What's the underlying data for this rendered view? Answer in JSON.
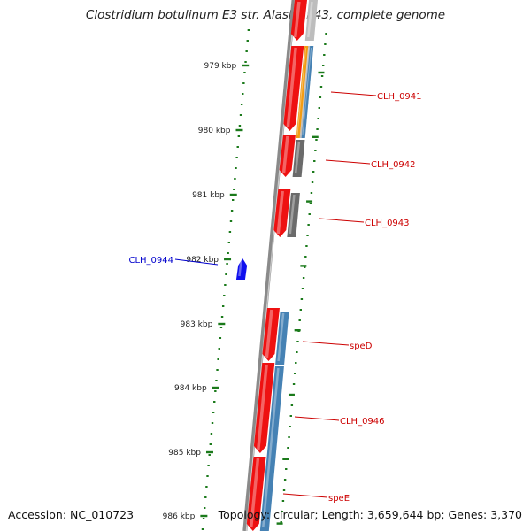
{
  "title": "Clostridium botulinum E3 str. Alaska E43, complete genome",
  "accession": "Accession: NC_010723",
  "topology": "Topology: circular; Length: 3,659,644 bp; Genes: 3,370",
  "colors": {
    "forward_gene": "#ee1111",
    "reverse_gene": "#1010ee",
    "blue_feature": "#4682b4",
    "gray_feature": "#6b6b6b",
    "orange_feature": "#f39c12",
    "tick_major": "#1b7a1b",
    "tick_minor": "#1b7a1b",
    "backbone": "#8a8a8a",
    "label_red": "#cc0000",
    "label_blue": "#0000cc"
  },
  "ruler_labels": [
    "979 kbp",
    "980 kbp",
    "981 kbp",
    "982 kbp",
    "983 kbp",
    "984 kbp",
    "985 kbp",
    "986 kbp"
  ],
  "gene_labels": [
    {
      "text": "CLH_0941",
      "color": "red"
    },
    {
      "text": "CLH_0942",
      "color": "red"
    },
    {
      "text": "CLH_0943",
      "color": "red"
    },
    {
      "text": "CLH_0944",
      "color": "blue"
    },
    {
      "text": "speD",
      "color": "red"
    },
    {
      "text": "CLH_0946",
      "color": "red"
    },
    {
      "text": "speE",
      "color": "red"
    }
  ]
}
